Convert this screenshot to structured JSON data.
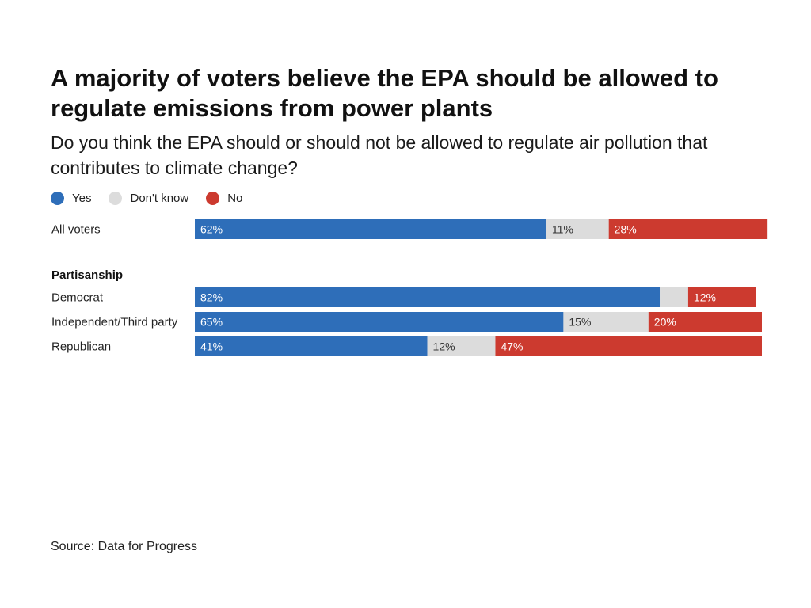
{
  "title": "A majority of voters believe the EPA should be allowed to regulate emissions from power plants",
  "subtitle": "Do you think the EPA should or should not be allowed to regulate air pollution that contributes to climate change?",
  "source": "Source: Data for Progress",
  "colors": {
    "yes": "#2e6eb9",
    "dont_know": "#dcdcdc",
    "no": "#cc3a2f"
  },
  "chart_data": {
    "type": "bar",
    "orientation": "horizontal",
    "stacked": true,
    "legend": [
      "Yes",
      "Don't know",
      "No"
    ],
    "legend_position": "top-left",
    "groups": [
      {
        "heading": "",
        "rows": [
          {
            "label": "All voters",
            "values": [
              62,
              11,
              28
            ],
            "value_labels": [
              "62%",
              "11%",
              "28%"
            ]
          }
        ]
      },
      {
        "heading": "Partisanship",
        "rows": [
          {
            "label": "Democrat",
            "values": [
              82,
              5,
              12
            ],
            "value_labels": [
              "82%",
              "",
              "12%"
            ]
          },
          {
            "label": "Independent/Third party",
            "values": [
              65,
              15,
              20
            ],
            "value_labels": [
              "65%",
              "15%",
              "20%"
            ]
          },
          {
            "label": "Republican",
            "values": [
              41,
              12,
              47
            ],
            "value_labels": [
              "41%",
              "12%",
              "47%"
            ]
          }
        ]
      }
    ],
    "xlim": [
      0,
      100
    ],
    "grid": false
  }
}
